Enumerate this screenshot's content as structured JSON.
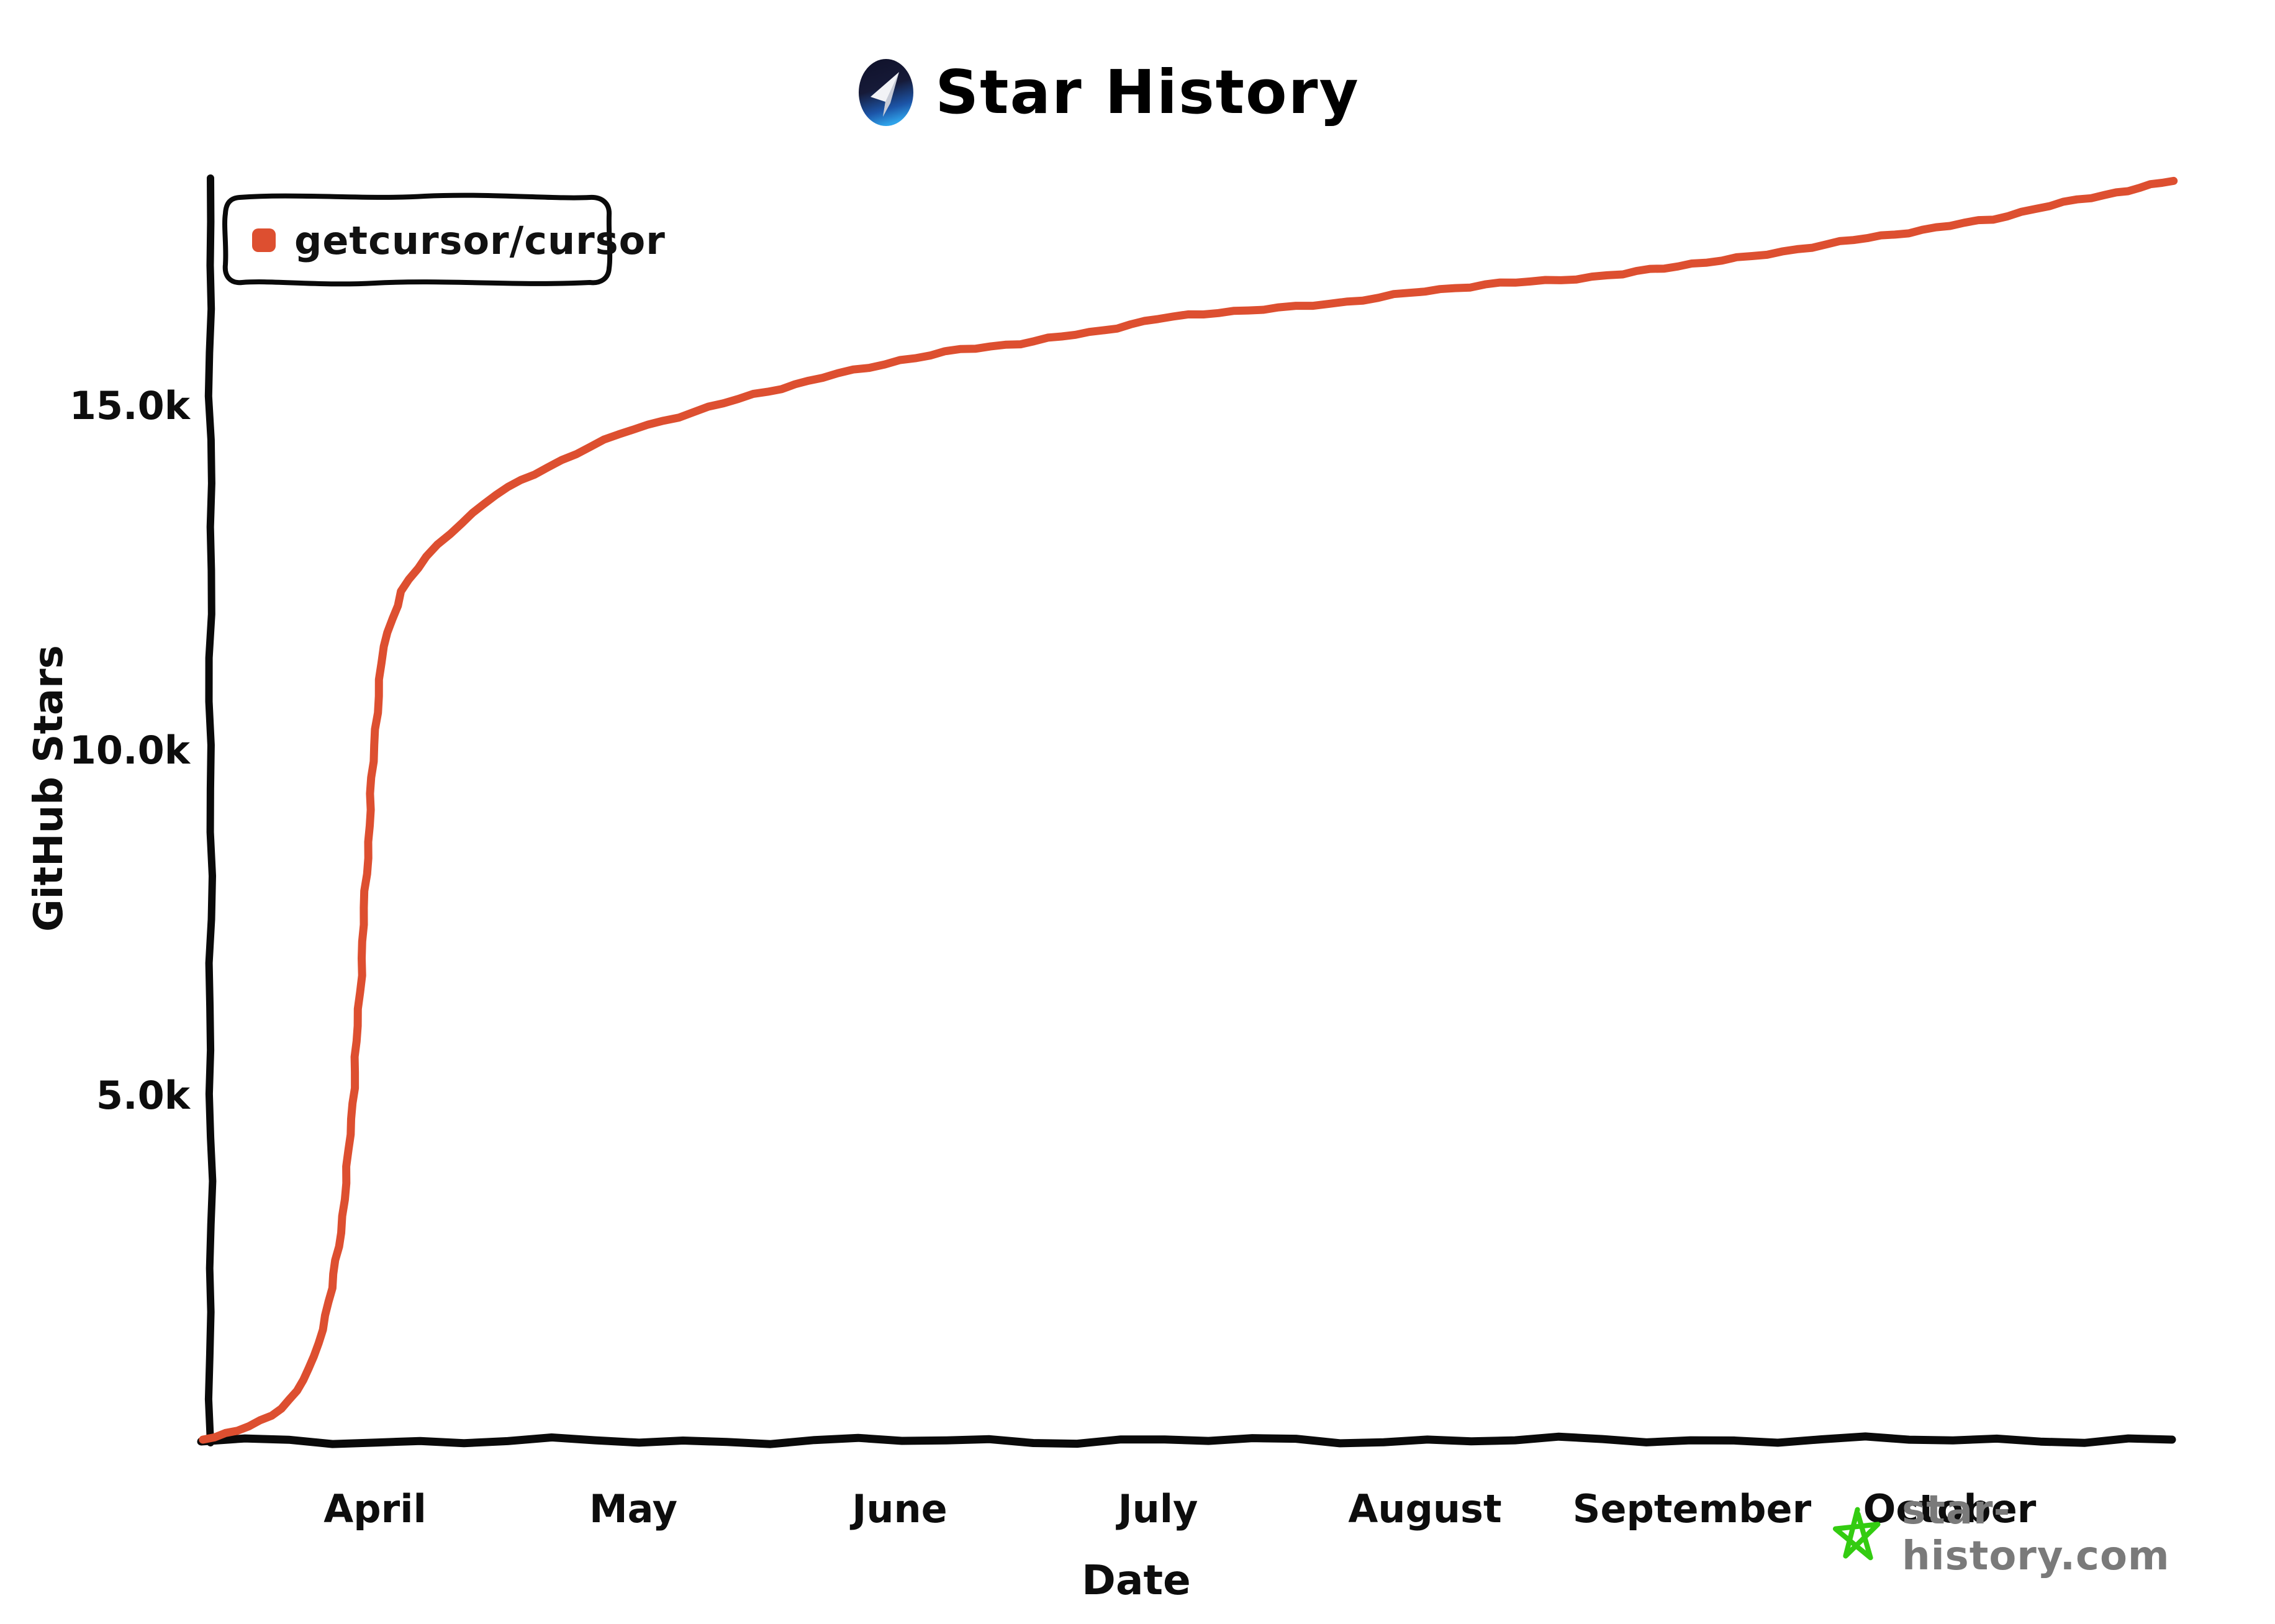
{
  "header": {
    "title": "Star History",
    "logo_icon": "star-history-logo"
  },
  "legend": {
    "items": [
      {
        "label": "getcursor/cursor",
        "marker_color": "#DD4F30"
      }
    ]
  },
  "watermark": {
    "text": "star-history.com",
    "star_color": "#33CC11",
    "text_color": "#7a7a7a"
  },
  "chart_data": {
    "type": "line",
    "title": "Star History",
    "xlabel": "Date",
    "ylabel": "GitHub Stars",
    "x_tick_labels": [
      "April",
      "May",
      "June",
      "July",
      "August",
      "September",
      "October"
    ],
    "x_tick_days": [
      20,
      50,
      81,
      111,
      142,
      173,
      203
    ],
    "y_tick_labels": [
      "5.0k",
      "10.0k",
      "15.0k"
    ],
    "y_tick_values": [
      5000,
      10000,
      15000
    ],
    "ylim": [
      0,
      18600
    ],
    "x_range_days": [
      0,
      229
    ],
    "grid": false,
    "legend_position": "top-left",
    "line_color": "#DD4F30",
    "axis_color": "#0a0a0a",
    "series": [
      {
        "name": "getcursor/cursor",
        "color": "#DD4F30",
        "points": [
          {
            "day": 0,
            "stars": 0
          },
          {
            "day": 4,
            "stars": 120
          },
          {
            "day": 8,
            "stars": 350
          },
          {
            "day": 11,
            "stars": 700
          },
          {
            "day": 13,
            "stars": 1200
          },
          {
            "day": 15,
            "stars": 2200
          },
          {
            "day": 16,
            "stars": 3000
          },
          {
            "day": 17,
            "stars": 4200
          },
          {
            "day": 18,
            "stars": 6000
          },
          {
            "day": 19,
            "stars": 8200
          },
          {
            "day": 20,
            "stars": 10300
          },
          {
            "day": 21,
            "stars": 11500
          },
          {
            "day": 23,
            "stars": 12300
          },
          {
            "day": 26,
            "stars": 12800
          },
          {
            "day": 30,
            "stars": 13300
          },
          {
            "day": 34,
            "stars": 13700
          },
          {
            "day": 40,
            "stars": 14100
          },
          {
            "day": 45,
            "stars": 14400
          },
          {
            "day": 50,
            "stars": 14650
          },
          {
            "day": 57,
            "stars": 14900
          },
          {
            "day": 64,
            "stars": 15150
          },
          {
            "day": 72,
            "stars": 15400
          },
          {
            "day": 81,
            "stars": 15650
          },
          {
            "day": 88,
            "stars": 15800
          },
          {
            "day": 95,
            "stars": 15900
          },
          {
            "day": 103,
            "stars": 16050
          },
          {
            "day": 111,
            "stars": 16250
          },
          {
            "day": 118,
            "stars": 16350
          },
          {
            "day": 125,
            "stars": 16400
          },
          {
            "day": 133,
            "stars": 16500
          },
          {
            "day": 142,
            "stars": 16650
          },
          {
            "day": 149,
            "stars": 16750
          },
          {
            "day": 156,
            "stars": 16800
          },
          {
            "day": 165,
            "stars": 16900
          },
          {
            "day": 173,
            "stars": 17050
          },
          {
            "day": 180,
            "stars": 17150
          },
          {
            "day": 187,
            "stars": 17300
          },
          {
            "day": 195,
            "stars": 17450
          },
          {
            "day": 203,
            "stars": 17600
          },
          {
            "day": 208,
            "stars": 17700
          },
          {
            "day": 213,
            "stars": 17850
          },
          {
            "day": 221,
            "stars": 18050
          },
          {
            "day": 225,
            "stars": 18150
          },
          {
            "day": 229,
            "stars": 18250
          }
        ]
      }
    ]
  }
}
